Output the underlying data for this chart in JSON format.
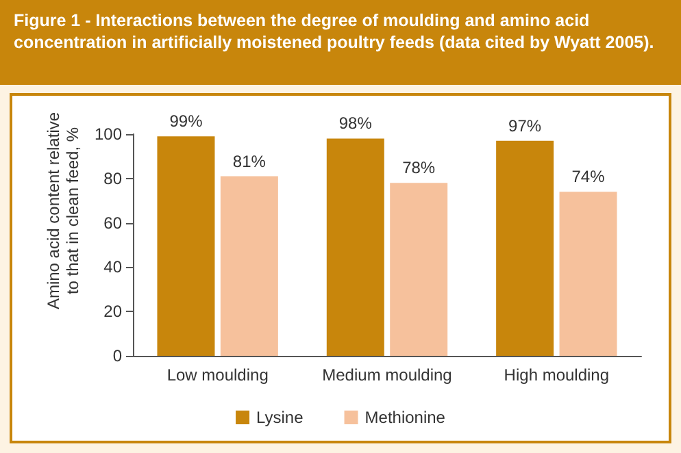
{
  "chart_data": {
    "type": "bar",
    "title": "Figure 1 - Interactions between the degree of moulding and amino acid concentration in artificially moistened poultry feeds (data cited by Wyatt 2005).",
    "ylabel": "Amino acid content relative to that in clean feed, %",
    "categories": [
      "Low moulding",
      "Medium moulding",
      "High moulding"
    ],
    "series": [
      {
        "name": "Lysine",
        "color": "#c8860c",
        "values": [
          99,
          98,
          97
        ],
        "value_labels": [
          "99%",
          "98%",
          "97%"
        ]
      },
      {
        "name": "Methionine",
        "color": "#f6c19c",
        "values": [
          81,
          78,
          74
        ],
        "value_labels": [
          "81%",
          "78%",
          "74%"
        ]
      }
    ],
    "ylim": [
      0,
      100
    ],
    "yticks": [
      0,
      20,
      40,
      60,
      80,
      100
    ],
    "grid": false,
    "legend": "bottom"
  }
}
